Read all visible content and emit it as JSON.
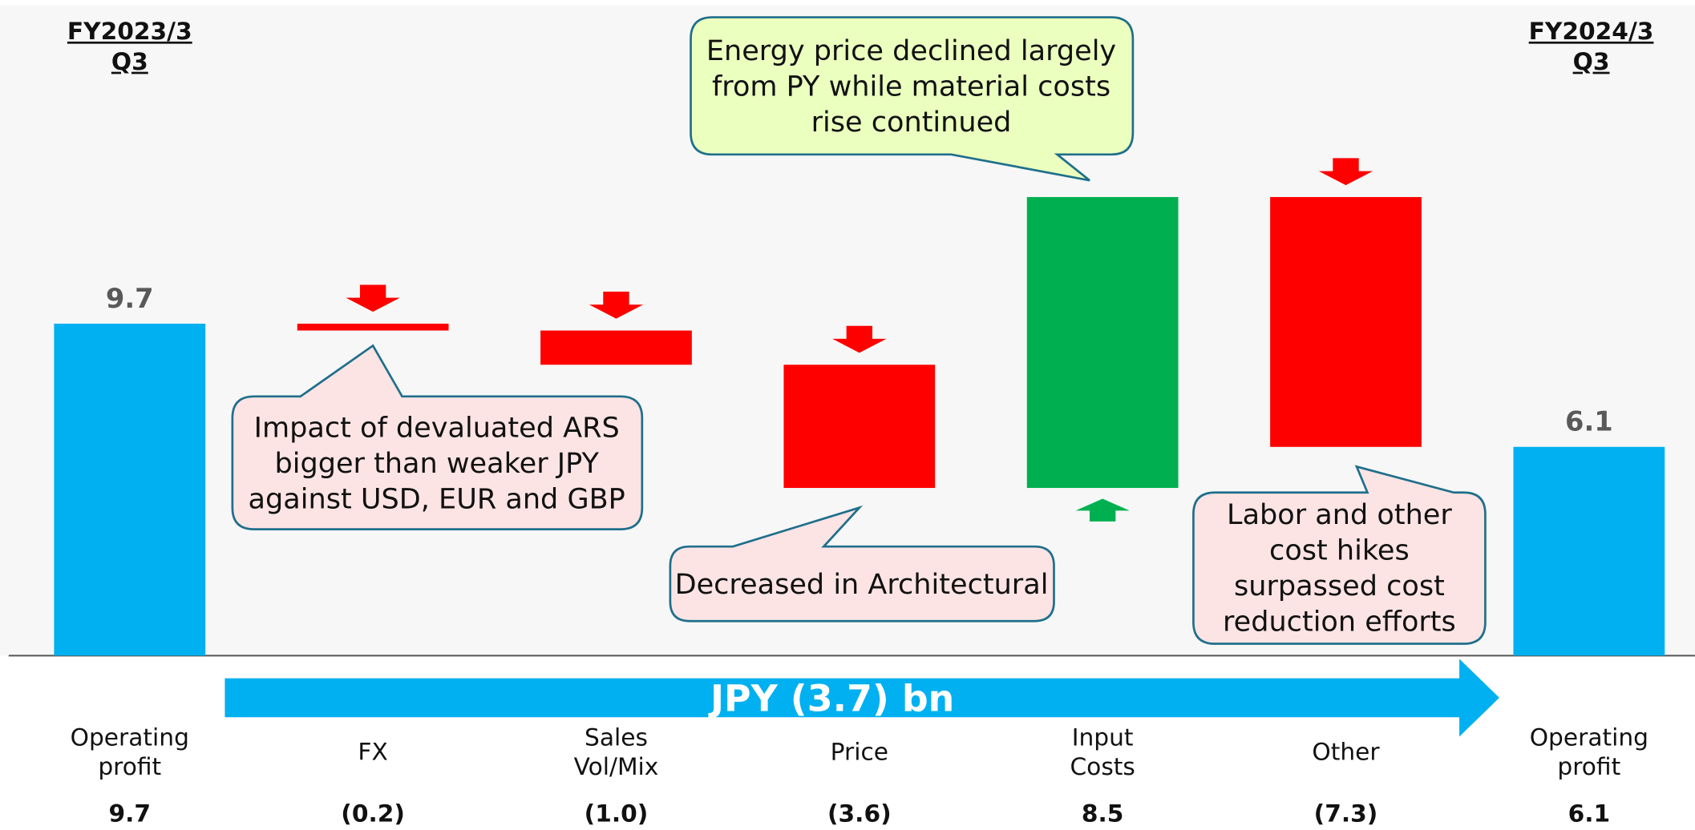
{
  "chart_data": {
    "type": "waterfall",
    "headings": [
      "FY2023/3\nQ3",
      "FY2024/3\nQ3"
    ],
    "categories": [
      "Operating\nprofit",
      "FX",
      "Sales\nVol/Mix",
      "Price",
      "Input\nCosts",
      "Other",
      "Operating\nprofit"
    ],
    "values": [
      9.7,
      -0.2,
      -1.0,
      -3.6,
      8.5,
      -7.3,
      6.1
    ],
    "value_labels": [
      "9.7",
      "(0.2)",
      "(1.0)",
      "(3.6)",
      "8.5",
      "(7.3)",
      "6.1"
    ],
    "kinds": [
      "total",
      "delta",
      "delta",
      "delta",
      "delta",
      "delta",
      "total"
    ],
    "colors": {
      "total": "#00b0f0",
      "increase": "#00b050",
      "decrease": "#ff0000"
    },
    "ylim": [
      0,
      19
    ],
    "annotations": [
      "Energy price declined largely\nfrom PY while material costs\nrise continued",
      "Impact of devaluated ARS\nbigger than weaker JPY\nagainst USD, EUR and GBP",
      "Decreased in Architectural",
      "Labor and other\ncost hikes\nsurpassed cost\nreduction efforts"
    ],
    "summary": "JPY (3.7) bn"
  }
}
